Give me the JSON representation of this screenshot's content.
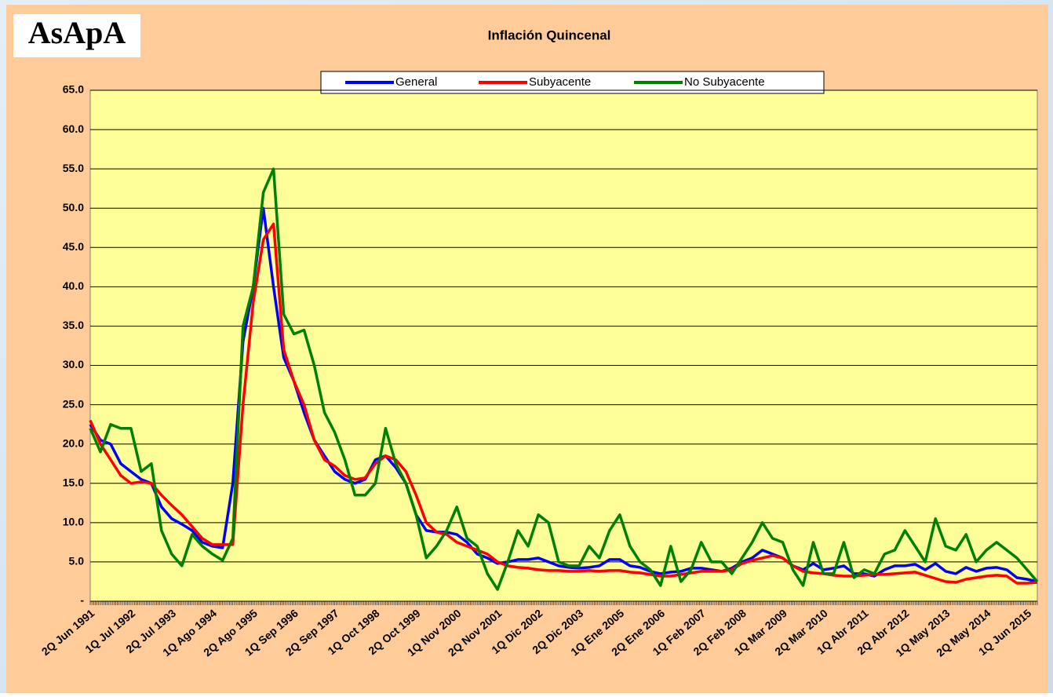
{
  "chart_data": {
    "type": "line",
    "title": "Inflación Quincenal",
    "logo": "AsApA",
    "categories": [
      "2Q Jun 1991",
      null,
      null,
      null,
      "1Q Jul 1992",
      null,
      null,
      null,
      "2Q Jul 1993",
      null,
      null,
      null,
      "1Q Ago 1994",
      null,
      null,
      null,
      "2Q Ago 1995",
      null,
      null,
      null,
      "1Q Sep 1996",
      null,
      null,
      null,
      "2Q Sep 1997",
      null,
      null,
      null,
      "1Q Oct 1998",
      null,
      null,
      null,
      "2Q Oct 1999",
      null,
      null,
      null,
      "1Q Nov 2000",
      null,
      null,
      null,
      "2Q Nov 2001",
      null,
      null,
      null,
      "1Q Dic 2002",
      null,
      null,
      null,
      "2Q Dic 2003",
      null,
      null,
      null,
      "1Q Ene 2005",
      null,
      null,
      null,
      "2Q Ene 2006",
      null,
      null,
      null,
      "1Q Feb 2007",
      null,
      null,
      null,
      "2Q Feb 2008",
      null,
      null,
      null,
      "1Q Mar 2009",
      null,
      null,
      null,
      "2Q Mar 2010",
      null,
      null,
      null,
      "1Q Abr 2011",
      null,
      null,
      null,
      "2Q Abr 2012",
      null,
      null,
      null,
      "1Q May 2013",
      null,
      null,
      null,
      "2Q May 2014",
      null,
      null,
      null,
      "1Q Jun 2015",
      null
    ],
    "series": [
      {
        "name": "General",
        "color": "#0000ff",
        "values": [
          22.5,
          20.5,
          20,
          17.5,
          16.5,
          15.5,
          15,
          12,
          10.5,
          9.8,
          9,
          7.5,
          7,
          6.8,
          15,
          33,
          40,
          50,
          40,
          31,
          28,
          24,
          20.5,
          18.5,
          16.5,
          15.5,
          15,
          15.5,
          18,
          18.5,
          17,
          15,
          11,
          9,
          8.8,
          8.8,
          8.5,
          7.5,
          6,
          5.5,
          4.8,
          5,
          5.3,
          5.3,
          5.5,
          5,
          4.5,
          4.3,
          4.2,
          4.3,
          4.5,
          5.3,
          5.3,
          4.5,
          4.3,
          3.8,
          3.5,
          3.7,
          3.8,
          4.2,
          4.2,
          4,
          3.8,
          4.2,
          5,
          5.5,
          6.5,
          6,
          5.5,
          4.5,
          4,
          4.8,
          4,
          4.2,
          4.5,
          3.5,
          3.5,
          3.2,
          4,
          4.5,
          4.5,
          4.7,
          4,
          4.8,
          3.8,
          3.5,
          4.3,
          3.8,
          4.2,
          4.3,
          4,
          3,
          2.8,
          2.5
        ]
      },
      {
        "name": "Subyacente",
        "color": "#ff0000",
        "values": [
          23,
          20,
          18,
          16,
          15,
          15.2,
          15,
          13.5,
          12.2,
          11,
          9.5,
          8,
          7.2,
          7.2,
          7.2,
          25,
          38,
          46,
          48,
          32,
          28,
          25,
          20.5,
          18,
          17.2,
          16,
          15.5,
          15.7,
          17.5,
          18.5,
          18,
          16.5,
          13.5,
          10,
          8.8,
          8.5,
          7.5,
          7,
          6.5,
          6,
          5,
          4.5,
          4.3,
          4.2,
          4,
          3.9,
          3.9,
          3.8,
          3.8,
          3.9,
          3.8,
          3.9,
          3.9,
          3.7,
          3.6,
          3.4,
          3.2,
          3.2,
          3.4,
          3.6,
          3.8,
          3.8,
          3.8,
          4,
          4.8,
          5.2,
          5.5,
          5.8,
          5.5,
          4.5,
          3.8,
          3.6,
          3.5,
          3.3,
          3.2,
          3.2,
          3.3,
          3.4,
          3.4,
          3.5,
          3.6,
          3.7,
          3.3,
          2.9,
          2.5,
          2.4,
          2.8,
          3,
          3.2,
          3.3,
          3.2,
          2.3,
          2.3,
          2.4
        ]
      },
      {
        "name": "No Subyacente",
        "color": "#008000",
        "values": [
          22,
          19,
          22.5,
          22,
          22,
          16.5,
          17.5,
          9,
          6,
          4.5,
          8.5,
          7,
          6,
          5.2,
          8,
          35,
          40,
          52,
          55,
          36.5,
          34,
          34.5,
          30,
          24,
          21.5,
          18,
          13.5,
          13.5,
          15,
          22,
          17.5,
          15,
          11,
          5.5,
          7,
          9,
          12,
          8,
          7,
          3.5,
          1.5,
          5,
          9,
          7,
          11,
          10,
          5,
          4.5,
          4.5,
          7,
          5.5,
          9,
          11,
          7,
          5,
          4,
          2,
          7,
          2.5,
          4,
          7.5,
          5,
          5,
          3.5,
          5.5,
          7.5,
          10,
          8,
          7.5,
          4,
          2,
          7.5,
          3.5,
          3.5,
          7.5,
          3,
          4,
          3.5,
          6,
          6.5,
          9,
          7,
          5,
          10.5,
          7,
          6.5,
          8.5,
          5,
          6.5,
          7.5,
          6.5,
          5.5,
          4,
          2.5
        ]
      }
    ],
    "ylim": [
      0,
      65
    ],
    "yticks": [
      {
        "value": 0,
        "label": "-"
      },
      {
        "value": 5,
        "label": "5.0"
      },
      {
        "value": 10,
        "label": "10.0"
      },
      {
        "value": 15,
        "label": "15.0"
      },
      {
        "value": 20,
        "label": "20.0"
      },
      {
        "value": 25,
        "label": "25.0"
      },
      {
        "value": 30,
        "label": "30.0"
      },
      {
        "value": 35,
        "label": "35.0"
      },
      {
        "value": 40,
        "label": "40.0"
      },
      {
        "value": 45,
        "label": "45.0"
      },
      {
        "value": 50,
        "label": "50.0"
      },
      {
        "value": 55,
        "label": "55.0"
      },
      {
        "value": 60,
        "label": "60.0"
      },
      {
        "value": 65,
        "label": "65.0"
      }
    ],
    "grid": true,
    "legend": "top"
  }
}
